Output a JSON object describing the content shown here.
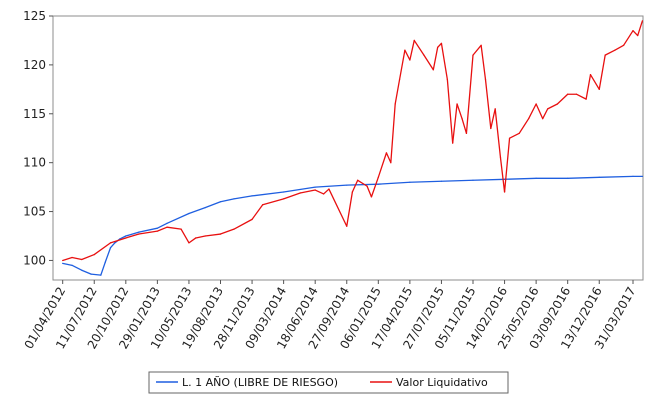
{
  "chart_data": {
    "type": "line",
    "title": "",
    "xlabel": "",
    "ylabel": "",
    "ylim": [
      98,
      125
    ],
    "yticks": [
      100,
      105,
      110,
      115,
      120,
      125
    ],
    "xticks": [
      "01/04/2012",
      "11/07/2012",
      "20/10/2012",
      "29/01/2013",
      "10/05/2013",
      "19/08/2013",
      "28/11/2013",
      "09/03/2014",
      "18/06/2014",
      "27/09/2014",
      "06/01/2015",
      "17/04/2015",
      "27/07/2015",
      "05/11/2015",
      "14/02/2016",
      "25/05/2016",
      "03/09/2016",
      "13/12/2016",
      "31/03/2017"
    ],
    "legend_position": "bottom",
    "grid": false,
    "series": [
      {
        "name": "L. 1 AÑO (LIBRE DE RIESGO)",
        "color": "#1f5fe0",
        "x": [
          "01/04/2012",
          "01/05/2012",
          "01/06/2012",
          "01/07/2012",
          "01/08/2012",
          "15/08/2012",
          "01/09/2012",
          "15/09/2012",
          "01/10/2012",
          "20/10/2012",
          "01/12/2012",
          "29/01/2013",
          "01/03/2013",
          "10/05/2013",
          "01/07/2013",
          "19/08/2013",
          "01/10/2013",
          "28/11/2013",
          "09/03/2014",
          "18/06/2014",
          "27/09/2014",
          "06/01/2015",
          "17/04/2015",
          "27/07/2015",
          "05/11/2015",
          "14/02/2016",
          "25/05/2016",
          "03/09/2016",
          "13/12/2016",
          "31/03/2017",
          "30/04/2017"
        ],
        "values": [
          99.7,
          99.5,
          99.0,
          98.6,
          98.5,
          99.8,
          101.3,
          101.8,
          102.2,
          102.5,
          102.9,
          103.3,
          103.8,
          104.8,
          105.4,
          106.0,
          106.3,
          106.6,
          107.0,
          107.5,
          107.7,
          107.8,
          108.0,
          108.1,
          108.2,
          108.3,
          108.4,
          108.4,
          108.5,
          108.6,
          108.6
        ]
      },
      {
        "name": "Valor Liquidativo",
        "color": "#e81010",
        "x": [
          "01/04/2012",
          "01/05/2012",
          "01/06/2012",
          "11/07/2012",
          "01/09/2012",
          "20/10/2012",
          "01/12/2012",
          "29/01/2013",
          "01/03/2013",
          "15/04/2013",
          "10/05/2013",
          "01/06/2013",
          "01/07/2013",
          "19/08/2013",
          "01/10/2013",
          "28/11/2013",
          "01/01/2014",
          "09/03/2014",
          "01/05/2014",
          "18/06/2014",
          "15/07/2014",
          "01/08/2014",
          "27/09/2014",
          "15/10/2014",
          "01/11/2014",
          "01/12/2014",
          "15/12/2014",
          "06/01/2015",
          "01/02/2015",
          "15/02/2015",
          "01/03/2015",
          "15/03/2015",
          "01/04/2015",
          "17/04/2015",
          "01/05/2015",
          "01/06/2015",
          "01/07/2015",
          "15/07/2015",
          "27/07/2015",
          "15/08/2015",
          "01/09/2015",
          "15/09/2015",
          "01/10/2015",
          "15/10/2015",
          "05/11/2015",
          "01/12/2015",
          "15/12/2015",
          "01/01/2016",
          "15/01/2016",
          "01/02/2016",
          "14/02/2016",
          "01/03/2016",
          "01/04/2016",
          "01/05/2016",
          "25/05/2016",
          "15/06/2016",
          "01/07/2016",
          "01/08/2016",
          "03/09/2016",
          "01/10/2016",
          "01/11/2016",
          "15/11/2016",
          "13/12/2016",
          "01/01/2017",
          "01/02/2017",
          "01/03/2017",
          "31/03/2017",
          "15/04/2017",
          "30/04/2017"
        ],
        "values": [
          100.0,
          100.3,
          100.1,
          100.6,
          101.8,
          102.3,
          102.7,
          103.0,
          103.4,
          103.2,
          101.8,
          102.3,
          102.5,
          102.7,
          103.2,
          104.2,
          105.7,
          106.3,
          106.9,
          107.2,
          106.8,
          107.3,
          103.5,
          107.0,
          108.2,
          107.6,
          106.5,
          108.5,
          111.0,
          110.0,
          116.0,
          118.5,
          121.5,
          120.5,
          122.5,
          121.0,
          119.5,
          121.8,
          122.2,
          118.5,
          112.0,
          116.0,
          114.5,
          113.0,
          121.0,
          122.0,
          118.5,
          113.5,
          115.5,
          110.5,
          107.0,
          112.5,
          113.0,
          114.5,
          116.0,
          114.5,
          115.5,
          116.0,
          117.0,
          117.0,
          116.5,
          119.0,
          117.5,
          121.0,
          121.5,
          122.0,
          123.5,
          123.0,
          124.5
        ]
      }
    ]
  }
}
